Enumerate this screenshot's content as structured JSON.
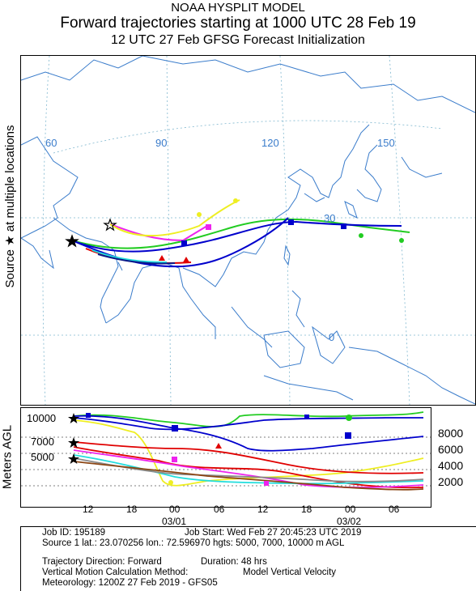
{
  "header": {
    "line1": "NOAA HYSPLIT MODEL",
    "line2": "Forward trajectories starting at 1000 UTC 28 Feb 19",
    "line3": "12 UTC 27 Feb    GFSG  Forecast Initialization"
  },
  "map": {
    "source_label": "Source ★ at multiple locations",
    "longitudes": [
      "60",
      "90",
      "120",
      "150"
    ],
    "latitudes": [
      "30",
      "0"
    ],
    "land_color": "#3a7ccb",
    "grid_color": "#7fb7cf"
  },
  "profile": {
    "ylabel": "Meters AGL",
    "source_levels": [
      "10000",
      "7000",
      "5000"
    ],
    "right_levels": [
      "8000",
      "6000",
      "4000",
      "2000"
    ],
    "time_ticks": [
      "12",
      "18",
      "00",
      "06",
      "12",
      "18",
      "00",
      "06"
    ],
    "dates": [
      "03/01",
      "03/02"
    ]
  },
  "series_colors": {
    "red": "#e00000",
    "blue": "#0000cc",
    "green": "#22cc22",
    "cyan": "#22dddd",
    "magenta": "#ee22ee",
    "yellow": "#eeee22",
    "gray": "#8a8a8a",
    "navy": "#0a1a8a",
    "brown": "#8b4513"
  },
  "footer": {
    "job_id": "Job ID: 195189",
    "job_start": "Job Start: Wed Feb 27 20:45:23 UTC 2019",
    "source1": "Source 1 lat.: 23.070256  lon.: 72.596970  hgts: 5000, 7000, 10000 m AGL",
    "direction": "Trajectory Direction: Forward",
    "duration": "Duration: 48 hrs",
    "vertical": "Vertical Motion Calculation Method:",
    "vertical_value": "Model Vertical Velocity",
    "meteorology": "Meteorology: 1200Z 27 Feb 2019 - GFS05"
  }
}
